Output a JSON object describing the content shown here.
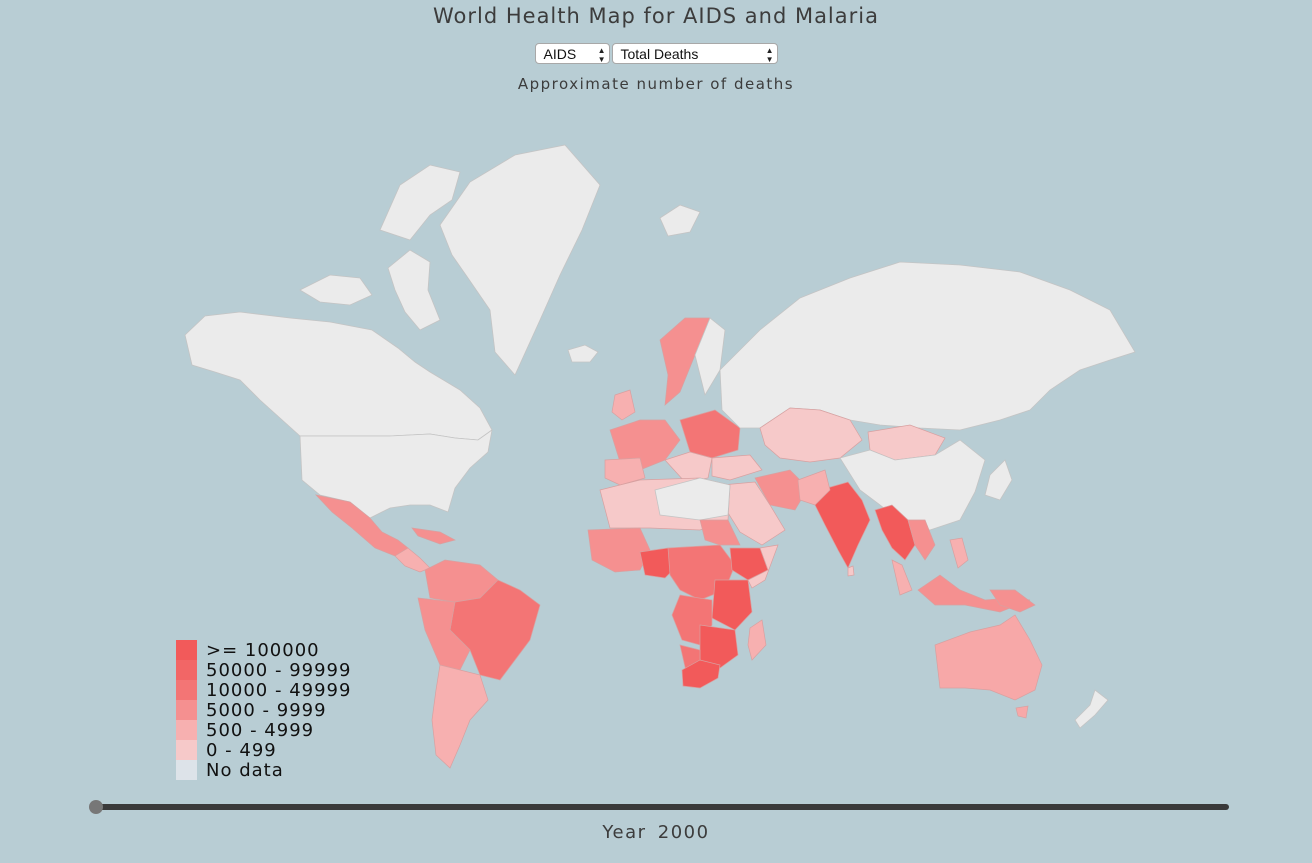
{
  "page": {
    "title": "World Health Map for AIDS and Malaria",
    "subtitle": "Approximate number of deaths"
  },
  "controls": {
    "disease_selected": "AIDS",
    "metric_selected": "Total Deaths"
  },
  "legend": {
    "items": [
      {
        "label": ">= 100000",
        "color": "#f25a5a"
      },
      {
        "label": "50000 - 99999",
        "color": "#f26666"
      },
      {
        "label": "10000 - 49999",
        "color": "#f37575"
      },
      {
        "label": "5000 - 9999",
        "color": "#f59090"
      },
      {
        "label": "500 - 4999",
        "color": "#f7b0b0"
      },
      {
        "label": "0 - 499",
        "color": "#f6c9c9"
      },
      {
        "label": "No data",
        "color": "#dde3e9"
      }
    ]
  },
  "timeline": {
    "year_label": "Year",
    "year": "2000",
    "progress": 0
  },
  "colors": {
    "background": "#b8cdd4",
    "land_no_data": "#ebebeb"
  }
}
